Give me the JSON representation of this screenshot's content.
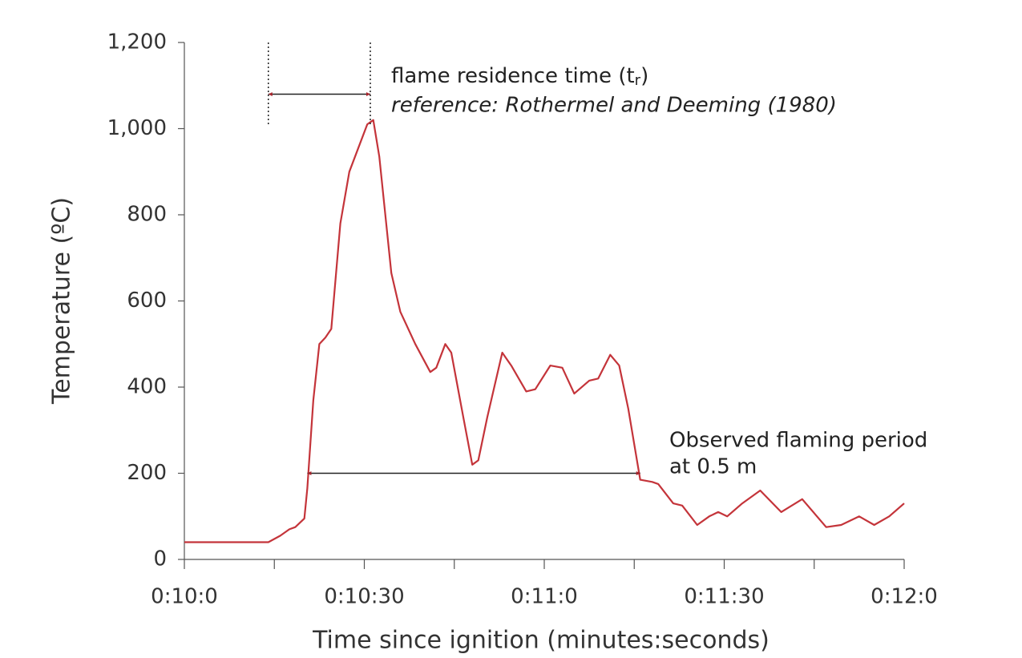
{
  "chart_data": {
    "type": "line",
    "xlabel": "Time since ignition (minutes:seconds)",
    "ylabel": "Temperature (ºC)",
    "color": "#c4343a",
    "x": [
      600,
      614,
      616,
      617.5,
      618.5,
      620,
      620.5,
      621.5,
      622.5,
      623.5,
      624.5,
      626,
      627.5,
      629,
      630.5,
      631.5,
      632.5,
      634.5,
      636,
      638.5,
      641,
      642,
      643.5,
      644.5,
      646.5,
      648,
      649,
      650.5,
      653,
      654.5,
      657,
      658.5,
      661,
      663,
      665,
      667.5,
      669,
      671,
      672.5,
      674,
      676,
      678,
      679,
      681.5,
      683,
      685.5,
      687.5,
      689,
      690.5,
      693,
      696,
      699.5,
      703,
      707,
      709.5,
      712.5,
      715,
      717.5,
      720
    ],
    "values": [
      40,
      40,
      55,
      70,
      75,
      95,
      165,
      370,
      500,
      515,
      535,
      780,
      900,
      955,
      1010,
      1020,
      935,
      665,
      575,
      500,
      435,
      445,
      500,
      480,
      330,
      220,
      230,
      330,
      480,
      450,
      390,
      395,
      450,
      445,
      385,
      415,
      420,
      475,
      450,
      350,
      185,
      180,
      175,
      130,
      125,
      80,
      100,
      110,
      100,
      130,
      160,
      110,
      140,
      75,
      80,
      100,
      80,
      100,
      130
    ],
    "xlim": [
      600,
      720
    ],
    "ylim": [
      0,
      1200
    ],
    "xticks": [
      {
        "value": 600,
        "label": "0:10:0"
      },
      {
        "value": 630,
        "label": "0:10:30"
      },
      {
        "value": 660,
        "label": "0:11:0"
      },
      {
        "value": 690,
        "label": "0:11:30"
      },
      {
        "value": 720,
        "label": "0:12:0"
      }
    ],
    "x_minor_ticks": [
      615,
      645,
      675,
      705
    ],
    "yticks": [
      0,
      200,
      400,
      600,
      800,
      {
        "value": 1000,
        "label": "1,000"
      },
      {
        "value": 1200,
        "label": "1,200"
      }
    ],
    "annotations": [
      {
        "text": "flame residence time (t",
        "subscript": "r",
        "suffix": ")",
        "note": "reference: Rothermel and Deeming (1980)",
        "span": [
          614,
          631
        ],
        "y": 1080
      },
      {
        "text": "Observed flaming period",
        "note": "at 0.5 m",
        "span": [
          620.5,
          676
        ],
        "y": 200
      }
    ]
  }
}
